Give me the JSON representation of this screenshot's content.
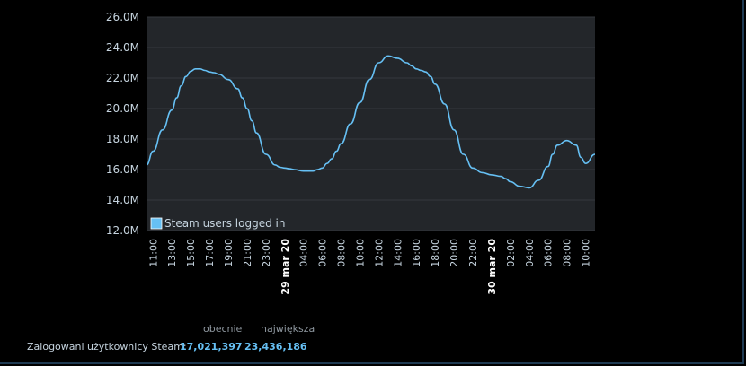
{
  "chart_data": {
    "type": "line",
    "y_ticks": [
      "12.0M",
      "14.0M",
      "16.0M",
      "18.0M",
      "20.0M",
      "22.0M",
      "24.0M",
      "26.0M"
    ],
    "ylim": [
      12.0,
      26.0
    ],
    "y_unit": "M",
    "x_ticks": [
      "11:00",
      "13:00",
      "15:00",
      "17:00",
      "19:00",
      "21:00",
      "23:00",
      "29 mar 20",
      "04:00",
      "06:00",
      "08:00",
      "10:00",
      "12:00",
      "14:00",
      "16:00",
      "18:00",
      "20:00",
      "22:00",
      "30 mar 20",
      "02:00",
      "04:00",
      "06:00",
      "08:00",
      "10:00"
    ],
    "x_date_ticks": [
      "29 mar 20",
      "30 mar 20"
    ],
    "x_hours": [
      10.3,
      11,
      12,
      13,
      13.5,
      14,
      14.5,
      15,
      15.5,
      16,
      16.5,
      17,
      17.5,
      18,
      19,
      20,
      20.5,
      21,
      21.5,
      22,
      23,
      24,
      24.5,
      25,
      25.5,
      26,
      27,
      28,
      28.5,
      29,
      29.5,
      30,
      30.5,
      31,
      32,
      33,
      34,
      35,
      36,
      37,
      38,
      38.5,
      39,
      39.5,
      40,
      40.5,
      41,
      42,
      43,
      44,
      45,
      46,
      47,
      48,
      48.5,
      49,
      50,
      51,
      52,
      53,
      53.5,
      54,
      55,
      56,
      56.5,
      57,
      58
    ],
    "values": [
      16.3,
      17.2,
      18.6,
      19.9,
      20.7,
      21.5,
      22.1,
      22.45,
      22.6,
      22.6,
      22.5,
      22.4,
      22.35,
      22.25,
      21.9,
      21.3,
      20.7,
      20.0,
      19.2,
      18.4,
      17.0,
      16.3,
      16.15,
      16.1,
      16.05,
      16.0,
      15.9,
      15.9,
      16.0,
      16.1,
      16.4,
      16.7,
      17.2,
      17.7,
      19.0,
      20.4,
      21.9,
      23.0,
      23.45,
      23.3,
      23.0,
      22.8,
      22.6,
      22.5,
      22.4,
      22.1,
      21.6,
      20.3,
      18.6,
      17.0,
      16.1,
      15.8,
      15.65,
      15.55,
      15.4,
      15.2,
      14.9,
      14.8,
      15.3,
      16.2,
      17.0,
      17.6,
      17.9,
      17.6,
      16.8,
      16.4,
      17.0
    ],
    "series_name": "Steam users logged in",
    "line_color": "#66c0f4",
    "plot_bg": "#23262a",
    "grid": true,
    "legend_position": "bottom-left"
  },
  "stats": {
    "col_current": "obecnie",
    "col_peak": "największa",
    "label": "Zalogowani użytkownicy Steam:",
    "current": "17,021,397",
    "peak": "23,436,186"
  }
}
